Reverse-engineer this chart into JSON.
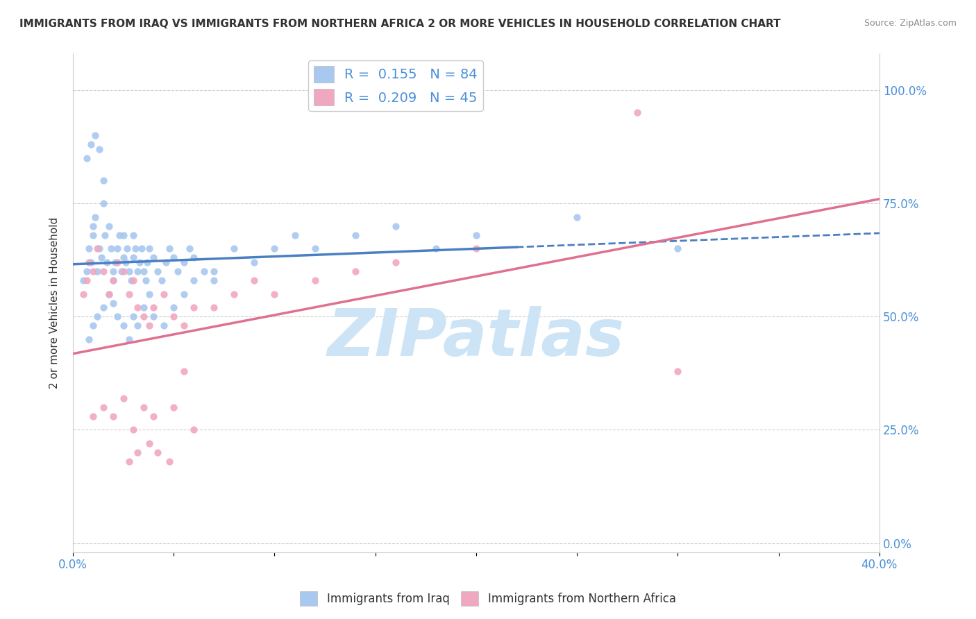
{
  "title": "IMMIGRANTS FROM IRAQ VS IMMIGRANTS FROM NORTHERN AFRICA 2 OR MORE VEHICLES IN HOUSEHOLD CORRELATION CHART",
  "source": "Source: ZipAtlas.com",
  "ylabel": "2 or more Vehicles in Household",
  "yticks": [
    "0.0%",
    "25.0%",
    "50.0%",
    "75.0%",
    "100.0%"
  ],
  "ytick_vals": [
    0.0,
    0.25,
    0.5,
    0.75,
    1.0
  ],
  "xmin": 0.0,
  "xmax": 0.4,
  "ymin": -0.02,
  "ymax": 1.08,
  "legend1_R": "0.155",
  "legend1_N": "84",
  "legend2_R": "0.209",
  "legend2_N": "45",
  "legend_label1": "Immigrants from Iraq",
  "legend_label2": "Immigrants from Northern Africa",
  "color_iraq": "#a8c8f0",
  "color_africa": "#f0a8c0",
  "color_iraq_line": "#4a7fc1",
  "color_africa_line": "#e07090",
  "watermark_color": "#cce4f5",
  "iraq_x": [
    0.005,
    0.007,
    0.008,
    0.009,
    0.01,
    0.01,
    0.011,
    0.012,
    0.013,
    0.014,
    0.015,
    0.015,
    0.016,
    0.017,
    0.018,
    0.019,
    0.02,
    0.02,
    0.021,
    0.022,
    0.023,
    0.024,
    0.025,
    0.025,
    0.026,
    0.027,
    0.028,
    0.029,
    0.03,
    0.03,
    0.031,
    0.032,
    0.033,
    0.034,
    0.035,
    0.036,
    0.037,
    0.038,
    0.04,
    0.042,
    0.044,
    0.046,
    0.048,
    0.05,
    0.052,
    0.055,
    0.058,
    0.06,
    0.065,
    0.07,
    0.008,
    0.01,
    0.012,
    0.015,
    0.018,
    0.02,
    0.022,
    0.025,
    0.028,
    0.03,
    0.032,
    0.035,
    0.038,
    0.04,
    0.045,
    0.05,
    0.055,
    0.06,
    0.07,
    0.08,
    0.09,
    0.1,
    0.11,
    0.12,
    0.14,
    0.16,
    0.18,
    0.2,
    0.25,
    0.3,
    0.007,
    0.009,
    0.011,
    0.013
  ],
  "iraq_y": [
    0.58,
    0.6,
    0.65,
    0.62,
    0.68,
    0.7,
    0.72,
    0.6,
    0.65,
    0.63,
    0.8,
    0.75,
    0.68,
    0.62,
    0.7,
    0.65,
    0.6,
    0.58,
    0.62,
    0.65,
    0.68,
    0.6,
    0.63,
    0.68,
    0.62,
    0.65,
    0.6,
    0.58,
    0.63,
    0.68,
    0.65,
    0.6,
    0.62,
    0.65,
    0.6,
    0.58,
    0.62,
    0.65,
    0.63,
    0.6,
    0.58,
    0.62,
    0.65,
    0.63,
    0.6,
    0.62,
    0.65,
    0.63,
    0.6,
    0.58,
    0.45,
    0.48,
    0.5,
    0.52,
    0.55,
    0.53,
    0.5,
    0.48,
    0.45,
    0.5,
    0.48,
    0.52,
    0.55,
    0.5,
    0.48,
    0.52,
    0.55,
    0.58,
    0.6,
    0.65,
    0.62,
    0.65,
    0.68,
    0.65,
    0.68,
    0.7,
    0.65,
    0.68,
    0.72,
    0.65,
    0.85,
    0.88,
    0.9,
    0.87
  ],
  "africa_x": [
    0.005,
    0.007,
    0.008,
    0.01,
    0.012,
    0.015,
    0.018,
    0.02,
    0.022,
    0.025,
    0.028,
    0.03,
    0.032,
    0.035,
    0.038,
    0.04,
    0.045,
    0.05,
    0.055,
    0.06,
    0.07,
    0.08,
    0.09,
    0.1,
    0.12,
    0.14,
    0.16,
    0.2,
    0.01,
    0.015,
    0.02,
    0.025,
    0.03,
    0.035,
    0.04,
    0.05,
    0.06,
    0.028,
    0.032,
    0.038,
    0.042,
    0.048,
    0.055,
    0.28,
    0.3
  ],
  "africa_y": [
    0.55,
    0.58,
    0.62,
    0.6,
    0.65,
    0.6,
    0.55,
    0.58,
    0.62,
    0.6,
    0.55,
    0.58,
    0.52,
    0.5,
    0.48,
    0.52,
    0.55,
    0.5,
    0.48,
    0.52,
    0.52,
    0.55,
    0.58,
    0.55,
    0.58,
    0.6,
    0.62,
    0.65,
    0.28,
    0.3,
    0.28,
    0.32,
    0.25,
    0.3,
    0.28,
    0.3,
    0.25,
    0.18,
    0.2,
    0.22,
    0.2,
    0.18,
    0.38,
    0.95,
    0.38
  ]
}
